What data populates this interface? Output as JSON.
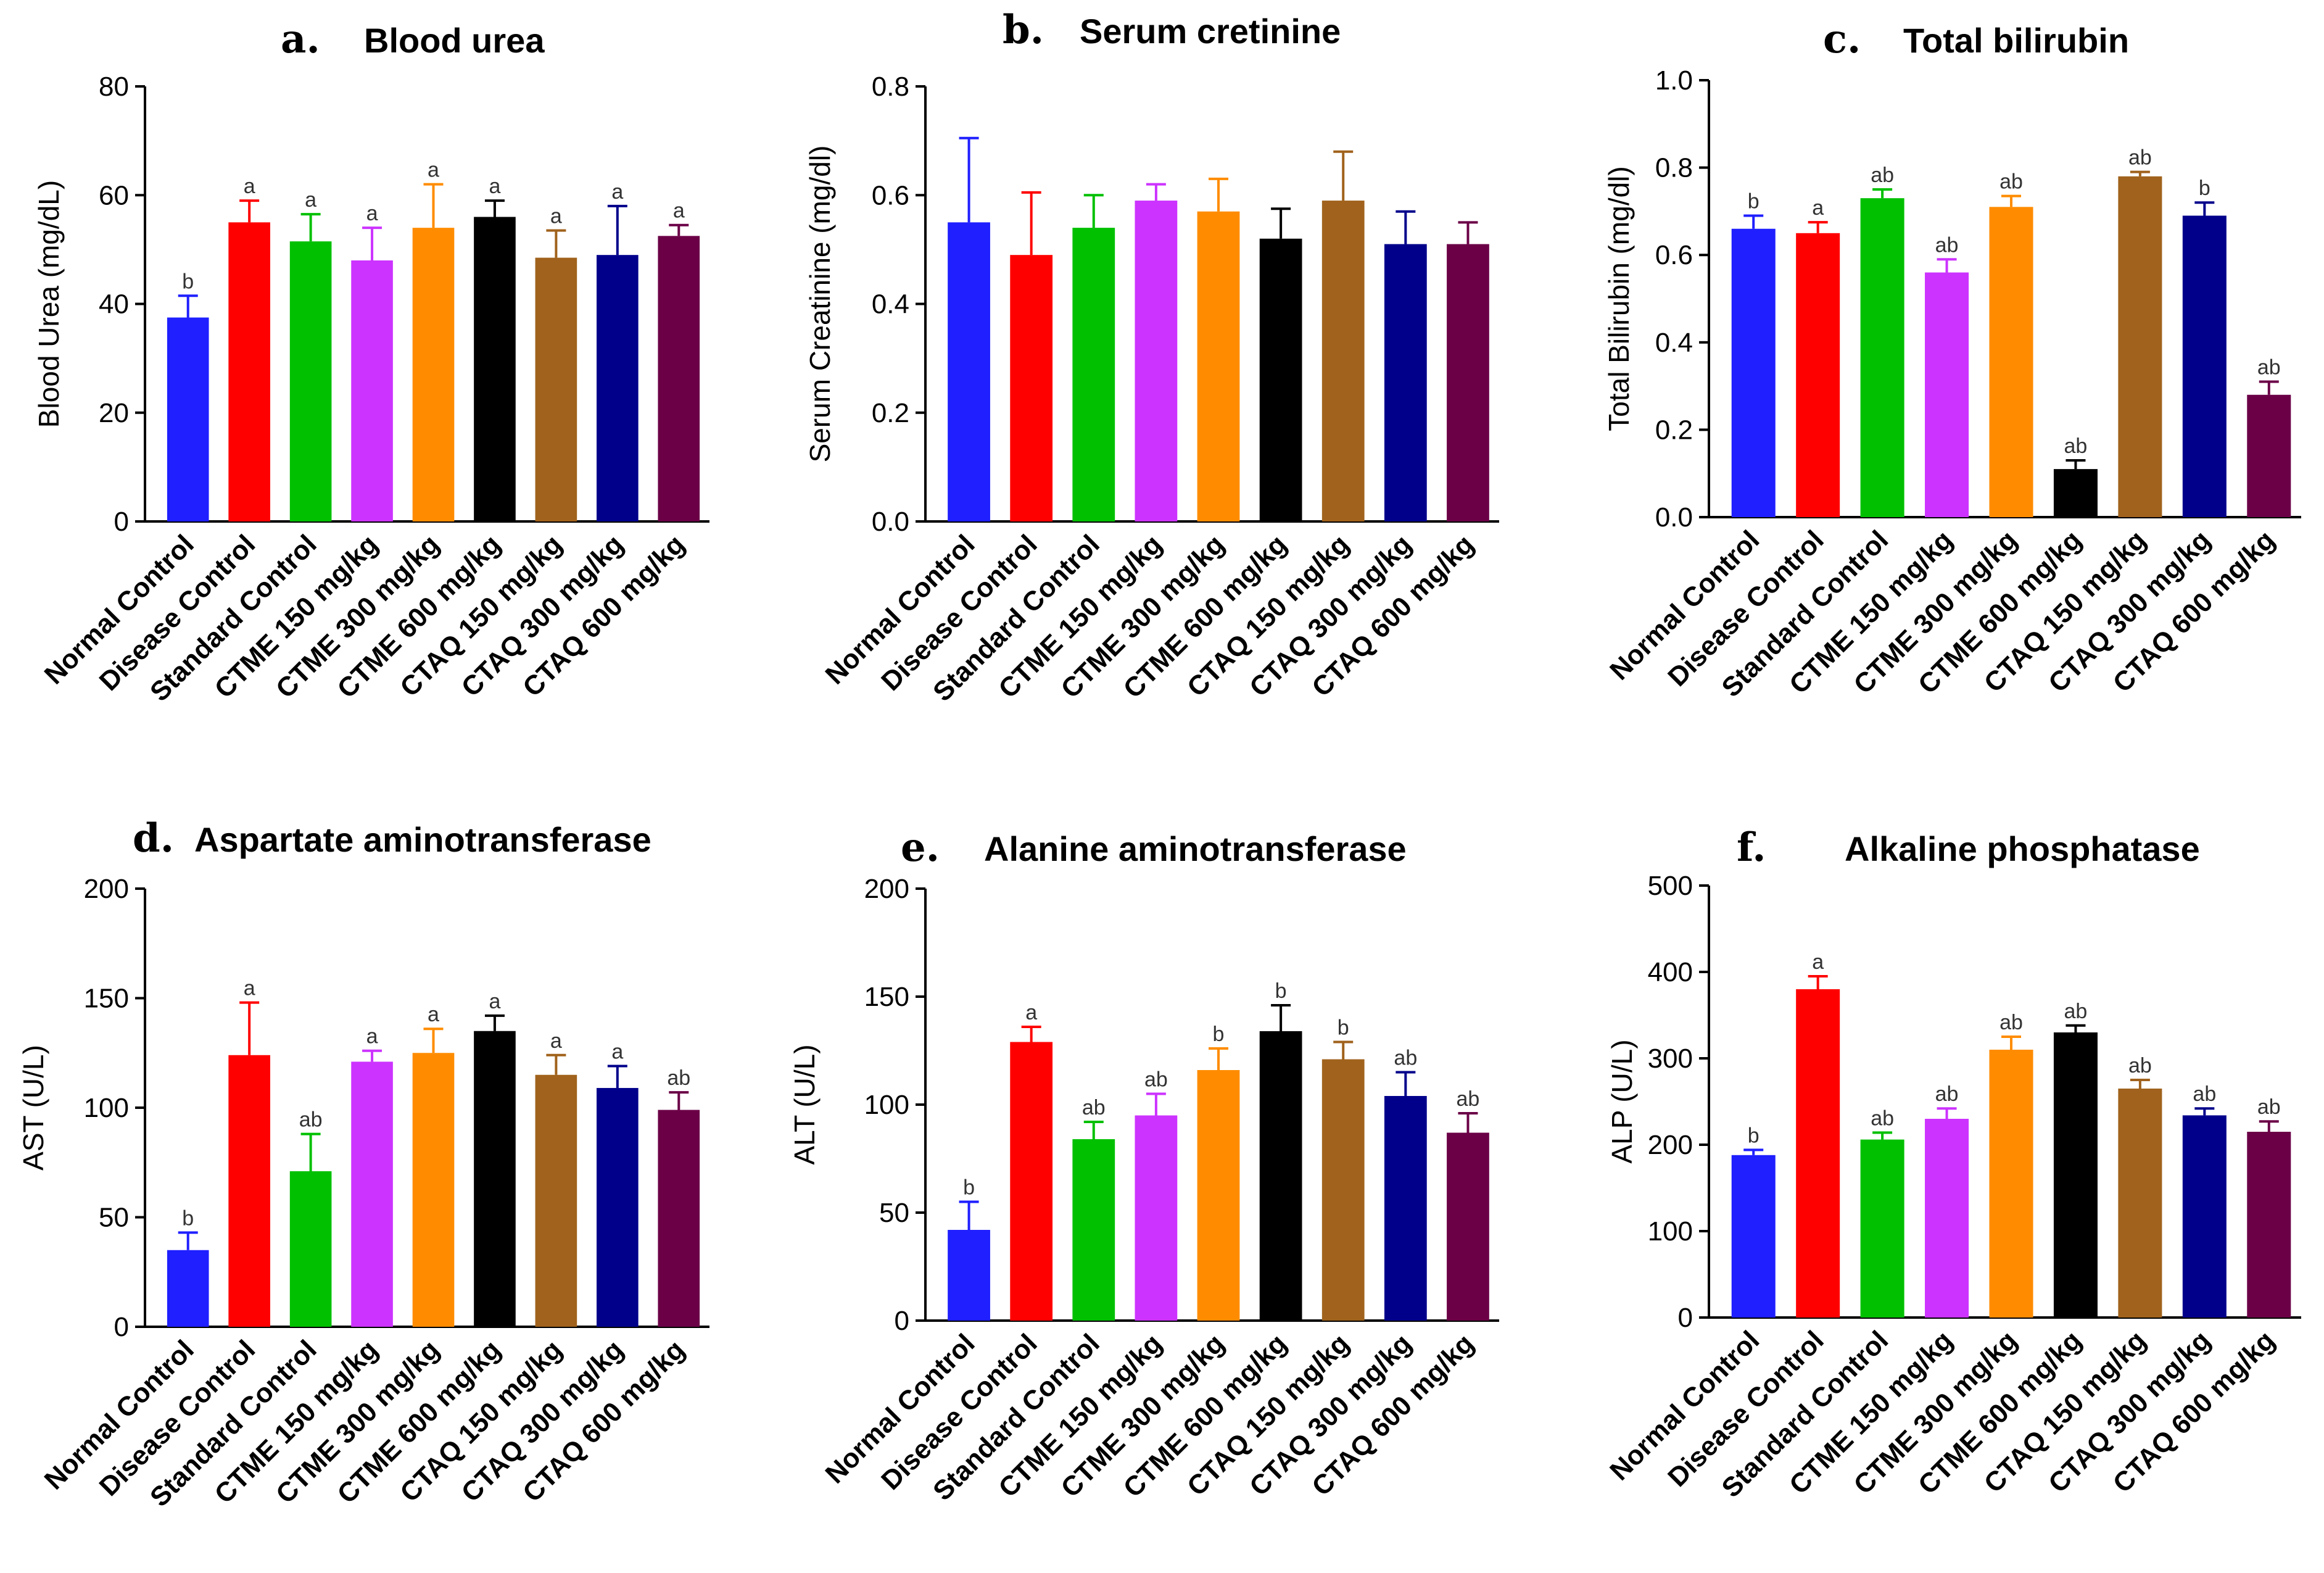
{
  "groups": [
    "Normal Control",
    "Disease Control",
    "Standard Control",
    "CTME 150 mg/kg",
    "CTME 300 mg/kg",
    "CTME 600 mg/kg",
    "CTAQ 150 mg/kg",
    "CTAQ 300 mg/kg",
    "CTAQ 600 mg/kg"
  ],
  "colors": [
    "#1f1fff",
    "#ff0000",
    "#00c000",
    "#cc33ff",
    "#ff8c00",
    "#000000",
    "#a0621c",
    "#00008b",
    "#6b0047"
  ],
  "chart_data": [
    {
      "type": "bar",
      "letter": "a.",
      "title": "Blood urea",
      "ylabel": "Blood Urea (mg/dL)",
      "ylim": [
        0,
        80
      ],
      "yticks": [
        "0",
        "20",
        "40",
        "60",
        "80"
      ],
      "categories": [
        "Normal Control",
        "Disease Control",
        "Standard Control",
        "CTME 150 mg/kg",
        "CTME 300 mg/kg",
        "CTME 600 mg/kg",
        "CTAQ 150 mg/kg",
        "CTAQ 300 mg/kg",
        "CTAQ 600 mg/kg"
      ],
      "values": [
        37.5,
        55,
        51.5,
        48,
        54,
        56,
        48.5,
        49,
        52.5
      ],
      "errors": [
        4,
        4,
        5,
        6,
        8,
        3,
        5,
        9,
        2
      ],
      "labels": [
        "b",
        "a",
        "a",
        "a",
        "a",
        "a",
        "a",
        "a",
        "a"
      ]
    },
    {
      "type": "bar",
      "letter": "b.",
      "title": "Serum cretinine",
      "ylabel": "Serum Creatinine (mg/dl)",
      "ylim": [
        0,
        0.8
      ],
      "yticks": [
        "0.0",
        "0.2",
        "0.4",
        "0.6",
        "0.8"
      ],
      "categories": [
        "Normal Control",
        "Disease Control",
        "Standard Control",
        "CTME 150 mg/kg",
        "CTME 300 mg/kg",
        "CTME 600 mg/kg",
        "CTAQ 150 mg/kg",
        "CTAQ 300 mg/kg",
        "CTAQ 600 mg/kg"
      ],
      "values": [
        0.55,
        0.49,
        0.54,
        0.59,
        0.57,
        0.52,
        0.59,
        0.51,
        0.51
      ],
      "errors": [
        0.155,
        0.115,
        0.06,
        0.03,
        0.06,
        0.055,
        0.09,
        0.06,
        0.04
      ],
      "labels": [
        "",
        "",
        "",
        "",
        "",
        "",
        "",
        "",
        ""
      ]
    },
    {
      "type": "bar",
      "letter": "c.",
      "title": "Total bilirubin",
      "ylabel": "Total Bilirubin (mg/dl)",
      "ylim": [
        0,
        1.0
      ],
      "yticks": [
        "0.0",
        "0.2",
        "0.4",
        "0.6",
        "0.8",
        "1.0"
      ],
      "categories": [
        "Normal Control",
        "Disease Control",
        "Standard Control",
        "CTME 150 mg/kg",
        "CTME 300 mg/kg",
        "CTME 600 mg/kg",
        "CTAQ 150 mg/kg",
        "CTAQ 300 mg/kg",
        "CTAQ 600 mg/kg"
      ],
      "values": [
        0.66,
        0.65,
        0.73,
        0.56,
        0.71,
        0.11,
        0.78,
        0.69,
        0.28
      ],
      "errors": [
        0.03,
        0.025,
        0.02,
        0.03,
        0.025,
        0.02,
        0.01,
        0.03,
        0.03
      ],
      "labels": [
        "b",
        "a",
        "ab",
        "ab",
        "ab",
        "ab",
        "ab",
        "b",
        "ab"
      ]
    },
    {
      "type": "bar",
      "letter": "d.",
      "title": "Aspartate aminotransferase",
      "ylabel": "AST (U/L)",
      "ylim": [
        0,
        200
      ],
      "yticks": [
        "0",
        "50",
        "100",
        "150",
        "200"
      ],
      "categories": [
        "Normal Control",
        "Disease Control",
        "Standard Control",
        "CTME 150 mg/kg",
        "CTME 300 mg/kg",
        "CTME 600 mg/kg",
        "CTAQ 150 mg/kg",
        "CTAQ 300 mg/kg",
        "CTAQ 600 mg/kg"
      ],
      "values": [
        35,
        124,
        71,
        121,
        125,
        135,
        115,
        109,
        99
      ],
      "errors": [
        8,
        24,
        17,
        5,
        11,
        7,
        9,
        10,
        8
      ],
      "labels": [
        "b",
        "a",
        "ab",
        "a",
        "a",
        "a",
        "a",
        "a",
        "ab"
      ]
    },
    {
      "type": "bar",
      "letter": "e.",
      "title": "Alanine aminotransferase",
      "ylabel": "ALT (U/L)",
      "ylim": [
        0,
        200
      ],
      "yticks": [
        "0",
        "50",
        "100",
        "150",
        "200"
      ],
      "categories": [
        "Normal Control",
        "Disease Control",
        "Standard Control",
        "CTME 150 mg/kg",
        "CTME 300 mg/kg",
        "CTME 600 mg/kg",
        "CTAQ 150 mg/kg",
        "CTAQ 300 mg/kg",
        "CTAQ 600 mg/kg"
      ],
      "values": [
        42,
        129,
        84,
        95,
        116,
        134,
        121,
        104,
        87
      ],
      "errors": [
        13,
        7,
        8,
        10,
        10,
        12,
        8,
        11,
        9
      ],
      "labels": [
        "b",
        "a",
        "ab",
        "ab",
        "b",
        "b",
        "b",
        "ab",
        "ab"
      ]
    },
    {
      "type": "bar",
      "letter": "f.",
      "title": "Alkaline phosphatase",
      "ylabel": "ALP (U/L)",
      "ylim": [
        0,
        500
      ],
      "yticks": [
        "0",
        "100",
        "200",
        "300",
        "400",
        "500"
      ],
      "categories": [
        "Normal Control",
        "Disease Control",
        "Standard Control",
        "CTME 150 mg/kg",
        "CTME 300 mg/kg",
        "CTME 600 mg/kg",
        "CTAQ 150 mg/kg",
        "CTAQ 300 mg/kg",
        "CTAQ 600 mg/kg"
      ],
      "values": [
        188,
        380,
        206,
        230,
        310,
        330,
        265,
        234,
        215
      ],
      "errors": [
        6,
        15,
        8,
        12,
        15,
        8,
        10,
        8,
        12
      ],
      "labels": [
        "b",
        "a",
        "ab",
        "ab",
        "ab",
        "ab",
        "ab",
        "ab",
        "ab"
      ]
    }
  ]
}
